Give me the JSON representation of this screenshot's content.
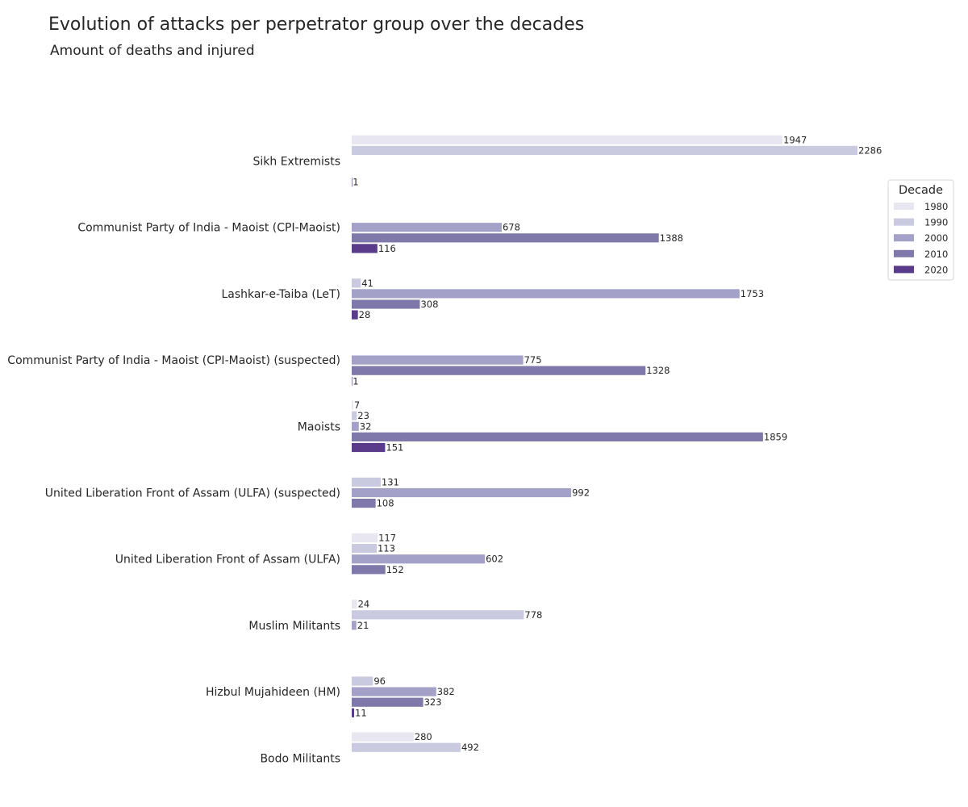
{
  "chart_data": {
    "type": "bar",
    "orientation": "horizontal",
    "title": "Evolution of attacks per perpetrator group over the decades",
    "subtitle": "Amount of deaths and injured",
    "xlabel": "",
    "ylabel": "",
    "grid": false,
    "legend": {
      "title": "Decade",
      "placement": "right",
      "entries": [
        "1980",
        "1990",
        "2000",
        "2010",
        "2020"
      ]
    },
    "colors": [
      "#e8e6f1",
      "#c9c9df",
      "#a3a1c8",
      "#7f79ab",
      "#5a3b8b"
    ],
    "categories": [
      "Sikh Extremists",
      "Communist Party of India - Maoist (CPI-Maoist)",
      "Lashkar-e-Taiba (LeT)",
      "Communist Party of India - Maoist (CPI-Maoist) (suspected)",
      "Maoists",
      "United Liberation Front of Assam (ULFA) (suspected)",
      "United Liberation Front of Assam (ULFA)",
      "Muslim Militants",
      "Hizbul Mujahideen (HM)",
      "Bodo Militants"
    ],
    "series": [
      {
        "name": "1980",
        "values": [
          1947,
          null,
          null,
          null,
          7,
          null,
          117,
          24,
          null,
          280
        ]
      },
      {
        "name": "1990",
        "values": [
          2286,
          null,
          41,
          null,
          23,
          131,
          113,
          778,
          96,
          492
        ]
      },
      {
        "name": "2000",
        "values": [
          null,
          678,
          1753,
          775,
          32,
          992,
          602,
          21,
          382,
          null
        ]
      },
      {
        "name": "2010",
        "values": [
          null,
          1388,
          308,
          1328,
          1859,
          108,
          152,
          null,
          323,
          null
        ]
      },
      {
        "name": "2020",
        "values": [
          1,
          116,
          28,
          1,
          151,
          null,
          null,
          null,
          11,
          null
        ]
      }
    ],
    "xlim": [
      0,
      2300
    ]
  }
}
